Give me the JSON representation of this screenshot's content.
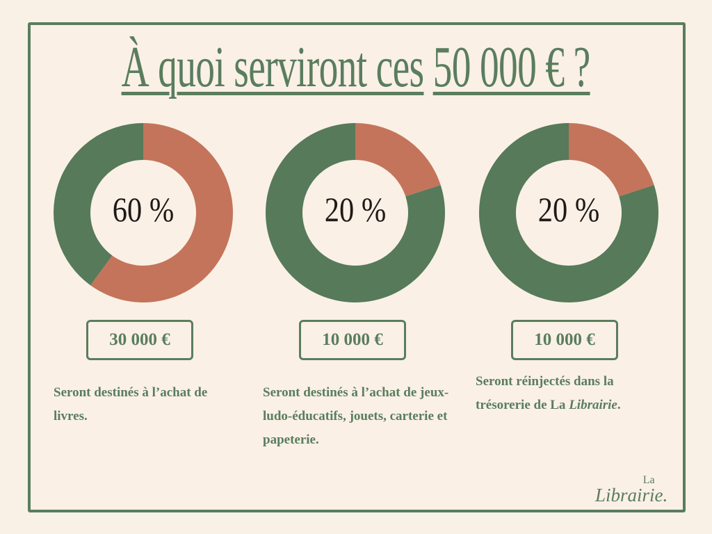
{
  "title": {
    "text_before": "À quoi serviront ces",
    "text_amount": "50 000 € ?"
  },
  "colors": {
    "orange": "#c4745a",
    "green": "#567a5a",
    "frame": "#5a7d5e",
    "background": "#f9f1e5"
  },
  "chart_data": [
    {
      "type": "pie",
      "variant": "donut",
      "label": "60 %",
      "values": [
        60,
        40
      ],
      "colors": [
        "#c4745a",
        "#567a5a"
      ]
    },
    {
      "type": "pie",
      "variant": "donut",
      "label": "20 %",
      "values": [
        20,
        80
      ],
      "colors": [
        "#c4745a",
        "#567a5a"
      ]
    },
    {
      "type": "pie",
      "variant": "donut",
      "label": "20 %",
      "values": [
        20,
        80
      ],
      "colors": [
        "#c4745a",
        "#567a5a"
      ]
    }
  ],
  "amounts": [
    "30 000 €",
    "10 000 €",
    "10 000 €"
  ],
  "descriptions": [
    "Seront destinés à l’achat de livres.",
    "Seront destinés à l’achat de jeux-ludo-éducatifs, jouets, carterie et papeterie.",
    {
      "before": "Seront réinjectés dans la trésorerie de La ",
      "italic": "Librairie",
      "after": "."
    }
  ],
  "logo": {
    "la": "La",
    "name": "Librairie."
  }
}
